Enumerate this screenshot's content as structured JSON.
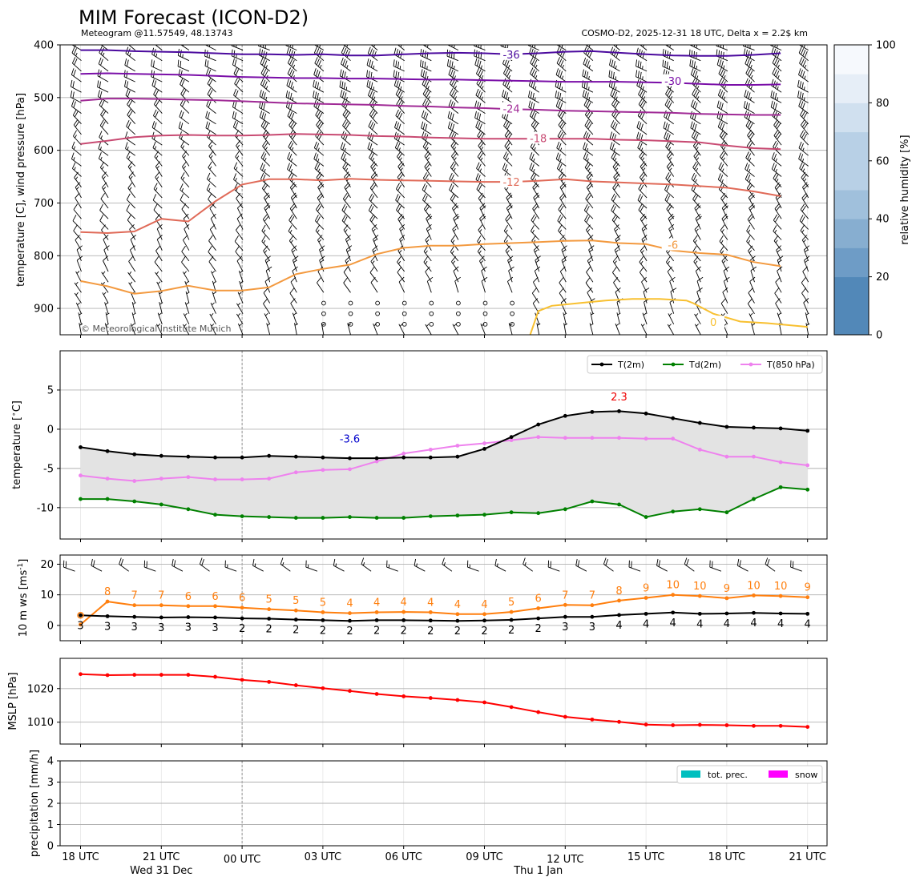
{
  "header": {
    "title": "MIM Forecast (ICON-D2)",
    "left_sub": "Meteogram @11.57549, 48.13743",
    "right_sub": "COSMO-D2, 2025-12-31 18 UTC, Delta x = 2.2$ km"
  },
  "copyright": "© Meteorological Institute Munich",
  "time_axis": {
    "ticks": [
      "18 UTC",
      "21 UTC",
      "00 UTC",
      "03 UTC",
      "06 UTC",
      "09 UTC",
      "12 UTC",
      "15 UTC",
      "18 UTC",
      "21 UTC"
    ],
    "day_labels": [
      "Wed 31 Dec",
      "Thu 1 Jan"
    ]
  },
  "chart_data": [
    {
      "id": "upper_air",
      "type": "contour",
      "ylabel": "temperature [C], wind pressure [hPa]",
      "y_ticks": [
        400,
        500,
        600,
        700,
        800,
        900
      ],
      "ylim": [
        950,
        400
      ],
      "y_inverted": true,
      "contour_labels": [
        {
          "level": "-36",
          "color": "#4b0a9e"
        },
        {
          "level": "-30",
          "color": "#7a0fa8"
        },
        {
          "level": "-24",
          "color": "#a02a96"
        },
        {
          "level": "-18",
          "color": "#c84a72"
        },
        {
          "level": "-12",
          "color": "#e06a58"
        },
        {
          "level": "-6",
          "color": "#f39a40"
        },
        {
          "level": "0",
          "color": "#f8c030"
        }
      ],
      "isotherms": [
        {
          "level": -36,
          "p": [
            410,
            410,
            412,
            413,
            414,
            416,
            418,
            418,
            419,
            418,
            420,
            420,
            418,
            416,
            415,
            416,
            418,
            416,
            413,
            412,
            415,
            418,
            420,
            421,
            421,
            419,
            416
          ]
        },
        {
          "level": -30,
          "p": [
            455,
            454,
            455,
            456,
            457,
            459,
            461,
            462,
            463,
            463,
            464,
            464,
            465,
            466,
            466,
            467,
            468,
            469,
            470,
            470,
            470,
            471,
            472,
            474,
            476,
            476,
            475
          ]
        },
        {
          "level": -24,
          "p": [
            506,
            502,
            502,
            503,
            504,
            505,
            507,
            509,
            511,
            512,
            513,
            514,
            516,
            517,
            519,
            520,
            522,
            523,
            525,
            526,
            527,
            528,
            529,
            531,
            532,
            533,
            533
          ]
        },
        {
          "level": -18,
          "p": [
            588,
            582,
            575,
            572,
            571,
            572,
            572,
            571,
            569,
            570,
            571,
            573,
            574,
            576,
            577,
            578,
            578,
            578,
            578,
            578,
            580,
            581,
            583,
            585,
            591,
            596,
            598
          ]
        },
        {
          "level": -12,
          "p": [
            755,
            757,
            754,
            730,
            735,
            697,
            665,
            655,
            655,
            657,
            654,
            656,
            657,
            658,
            659,
            660,
            660,
            658,
            655,
            659,
            661,
            663,
            665,
            668,
            671,
            678,
            687
          ]
        },
        {
          "level": -6,
          "p": [
            848,
            858,
            872,
            867,
            857,
            866,
            866,
            860,
            835,
            825,
            817,
            797,
            785,
            781,
            781,
            778,
            776,
            774,
            772,
            771,
            776,
            778,
            790,
            795,
            798,
            812,
            820
          ]
        },
        {
          "level": 0,
          "x": [
            16.7,
            17.0,
            17.5,
            18.5,
            19.5,
            20.5,
            21.5,
            22.5,
            22.75,
            23.5,
            24.5,
            25.5,
            27.0
          ],
          "p": [
            950,
            905,
            895,
            890,
            885,
            882,
            882,
            885,
            890,
            910,
            925,
            928,
            935
          ]
        }
      ],
      "colorbar": {
        "label": "relative humidity [%]",
        "ticks": [
          0,
          20,
          40,
          60,
          80,
          100
        ],
        "colors": [
          "#5288b8",
          "#6e9cc6",
          "#87aed0",
          "#a0c0dc",
          "#b8d0e6",
          "#d0e0ef",
          "#e6eef7",
          "#f6f9fd"
        ]
      }
    },
    {
      "id": "temperature",
      "type": "line",
      "ylabel": "temperature [$^\\circ$C]",
      "y_ticks": [
        5,
        0,
        -5,
        -10
      ],
      "ylim": [
        -14,
        10
      ],
      "grid": true,
      "legend_position": "top-right",
      "series": [
        {
          "name": "T(2m)",
          "color": "#000000",
          "values": [
            -2.3,
            -2.8,
            -3.2,
            -3.4,
            -3.5,
            -3.6,
            -3.6,
            -3.4,
            -3.5,
            -3.6,
            -3.7,
            -3.7,
            -3.6,
            -3.6,
            -3.5,
            -2.5,
            -1.0,
            0.6,
            1.7,
            2.2,
            2.3,
            2.0,
            1.4,
            0.8,
            0.3,
            0.2,
            0.1,
            -0.2
          ]
        },
        {
          "name": "Td(2m)",
          "color": "#008000",
          "values": [
            -8.9,
            -8.9,
            -9.2,
            -9.6,
            -10.2,
            -10.9,
            -11.1,
            -11.2,
            -11.3,
            -11.3,
            -11.2,
            -11.3,
            -11.3,
            -11.1,
            -11.0,
            -10.9,
            -10.6,
            -10.7,
            -10.2,
            -9.2,
            -9.6,
            -11.2,
            -10.5,
            -10.2,
            -10.6,
            -8.9,
            -7.4,
            -7.7
          ]
        },
        {
          "name": "T(850 hPa)",
          "color": "#ee82ee",
          "values": [
            -5.9,
            -6.3,
            -6.6,
            -6.3,
            -6.1,
            -6.4,
            -6.4,
            -6.3,
            -5.5,
            -5.2,
            -5.1,
            -4.1,
            -3.1,
            -2.6,
            -2.1,
            -1.8,
            -1.4,
            -1.0,
            -1.1,
            -1.1,
            -1.1,
            -1.2,
            -1.2,
            -2.6,
            -3.5,
            -3.5,
            -4.2,
            -4.6
          ]
        }
      ],
      "annotations": [
        {
          "text": "-3.6",
          "x": 10,
          "y": -1.2,
          "color": "#0000cc"
        },
        {
          "text": "2.3",
          "x": 20,
          "y": 4.2,
          "color": "#ee0000"
        }
      ]
    },
    {
      "id": "wind10m",
      "type": "line",
      "ylabel": "10 m ws [ms$^{-1}$]",
      "y_ticks": [
        20,
        10,
        0
      ],
      "ylim": [
        -5,
        23
      ],
      "grid": true,
      "series": [
        {
          "name": "",
          "color": "#ff7f0e",
          "values": [
            0,
            8,
            7,
            7,
            6,
            6,
            6,
            5,
            5,
            5,
            4,
            4,
            4,
            4,
            4,
            4,
            5,
            6,
            7,
            7,
            8,
            9,
            10,
            10,
            9,
            10,
            10,
            9
          ],
          "line_values": [
            0.3,
            7.8,
            6.6,
            6.6,
            6.3,
            6.3,
            5.8,
            5.3,
            4.9,
            4.3,
            4.0,
            4.3,
            4.4,
            4.3,
            3.7,
            3.7,
            4.4,
            5.6,
            6.7,
            6.6,
            8.1,
            9.0,
            10.0,
            9.6,
            8.9,
            9.8,
            9.6,
            9.2
          ]
        },
        {
          "name": "",
          "color": "#000000",
          "values": [
            3,
            3,
            3,
            3,
            3,
            3,
            2,
            2,
            2,
            2,
            2,
            2,
            2,
            2,
            2,
            2,
            2,
            2,
            3,
            3,
            4,
            4,
            4,
            4,
            4,
            4,
            4,
            4
          ],
          "line_values": [
            3.3,
            3.0,
            2.8,
            2.6,
            2.7,
            2.6,
            2.3,
            2.2,
            1.9,
            1.7,
            1.5,
            1.7,
            1.7,
            1.6,
            1.5,
            1.6,
            1.8,
            2.3,
            2.8,
            2.8,
            3.4,
            3.8,
            4.2,
            3.8,
            3.9,
            4.1,
            3.9,
            3.8
          ]
        }
      ]
    },
    {
      "id": "mslp",
      "type": "line",
      "ylabel": "MSLP [hPa]",
      "y_ticks": [
        1020,
        1010
      ],
      "ylim": [
        1003.5,
        1029
      ],
      "grid": true,
      "series": [
        {
          "name": "",
          "color": "#ff0000",
          "values": [
            1024.3,
            1024.0,
            1024.1,
            1024.1,
            1024.1,
            1023.5,
            1022.6,
            1022.0,
            1021.0,
            1020.1,
            1019.3,
            1018.4,
            1017.7,
            1017.2,
            1016.6,
            1015.9,
            1014.5,
            1013.0,
            1011.6,
            1010.8,
            1010.1,
            1009.3,
            1009.1,
            1009.2,
            1009.1,
            1008.9,
            1008.9,
            1008.6
          ]
        }
      ]
    },
    {
      "id": "precip",
      "type": "bar",
      "ylabel": "precipitation [mm/h]",
      "y_ticks": [
        0,
        1,
        2,
        3,
        4
      ],
      "ylim": [
        0,
        4
      ],
      "grid": true,
      "legend_position": "top-right",
      "series": [
        {
          "name": "tot. prec.",
          "color": "#00bfbf",
          "values": [
            0,
            0,
            0,
            0,
            0,
            0,
            0,
            0,
            0,
            0,
            0,
            0,
            0,
            0,
            0,
            0,
            0,
            0,
            0,
            0,
            0,
            0,
            0,
            0,
            0,
            0,
            0,
            0
          ]
        },
        {
          "name": "snow",
          "color": "#ff00ff",
          "values": [
            0,
            0,
            0,
            0,
            0,
            0,
            0,
            0,
            0,
            0,
            0,
            0,
            0,
            0,
            0,
            0,
            0,
            0,
            0,
            0,
            0,
            0,
            0,
            0,
            0,
            0,
            0,
            0
          ]
        }
      ]
    }
  ]
}
